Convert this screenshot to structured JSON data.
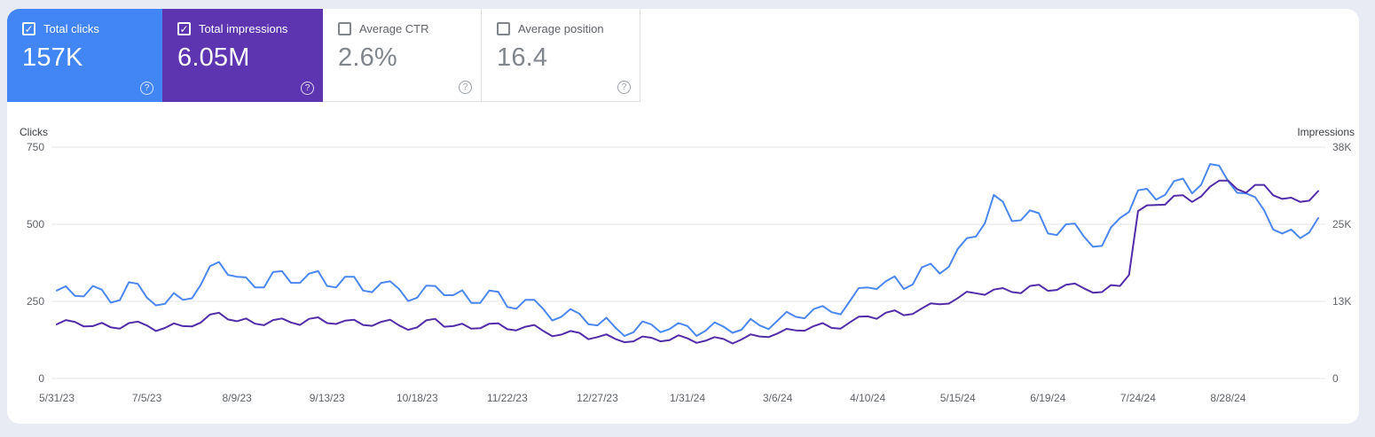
{
  "page": {
    "background": "#e9ebf4",
    "panel_background": "#ffffff"
  },
  "cards": [
    {
      "label": "Total clicks",
      "value": "157K",
      "checked": true,
      "accent": "#4285f4",
      "help_icon": "?"
    },
    {
      "label": "Total impressions",
      "value": "6.05M",
      "checked": true,
      "accent": "#5e35b1",
      "help_icon": "?"
    },
    {
      "label": "Average CTR",
      "value": "2.6%",
      "checked": false,
      "accent": "#ffffff",
      "help_icon": "?"
    },
    {
      "label": "Average position",
      "value": "16.4",
      "checked": false,
      "accent": "#ffffff",
      "help_icon": "?"
    }
  ],
  "chart_data": {
    "type": "line",
    "grid": true,
    "left_axis": {
      "title": "Clicks",
      "ticks": [
        "750",
        "500",
        "250",
        "0"
      ],
      "range": [
        0,
        750
      ]
    },
    "right_axis": {
      "title": "Impressions",
      "ticks": [
        "38K",
        "25K",
        "13K",
        "0"
      ],
      "range": [
        0,
        38000
      ]
    },
    "x_tick_labels": [
      "5/31/23",
      "7/5/23",
      "8/9/23",
      "9/13/23",
      "10/18/23",
      "11/22/23",
      "12/27/23",
      "1/31/24",
      "3/6/24",
      "4/10/24",
      "5/15/24",
      "6/19/24",
      "7/24/24",
      "8/28/24"
    ],
    "x_tick_every_n_points": 10,
    "series": [
      {
        "name": "Total clicks",
        "axis": "left",
        "color": "#4c87f0",
        "values": [
          285,
          299,
          268,
          266,
          300,
          288,
          246,
          254,
          312,
          307,
          262,
          237,
          242,
          277,
          255,
          260,
          305,
          364,
          378,
          336,
          330,
          328,
          295,
          295,
          345,
          348,
          310,
          310,
          340,
          348,
          300,
          295,
          330,
          330,
          285,
          280,
          310,
          315,
          290,
          251,
          262,
          301,
          300,
          270,
          270,
          286,
          245,
          245,
          285,
          281,
          232,
          226,
          255,
          255,
          225,
          188,
          200,
          225,
          210,
          176,
          172,
          197,
          165,
          138,
          150,
          185,
          175,
          150,
          160,
          180,
          170,
          138,
          155,
          182,
          168,
          148,
          158,
          193,
          172,
          160,
          188,
          216,
          200,
          195,
          225,
          235,
          215,
          208,
          250,
          293,
          295,
          290,
          315,
          331,
          290,
          305,
          360,
          372,
          340,
          362,
          420,
          455,
          460,
          503,
          595,
          573,
          510,
          513,
          545,
          536,
          470,
          465,
          500,
          502,
          460,
          427,
          430,
          490,
          520,
          540,
          610,
          615,
          580,
          595,
          640,
          648,
          600,
          628,
          695,
          690,
          640,
          602,
          600,
          588,
          545,
          483,
          470,
          483,
          455,
          473,
          520
        ]
      },
      {
        "name": "Total impressions",
        "axis": "right",
        "color": "#512da8",
        "values": [
          8900,
          9600,
          9300,
          8550,
          8600,
          9150,
          8400,
          8200,
          9100,
          9350,
          8700,
          7800,
          8300,
          9050,
          8600,
          8550,
          9200,
          10500,
          10800,
          9700,
          9400,
          9850,
          9000,
          8750,
          9600,
          9850,
          9200,
          8800,
          9800,
          10050,
          9100,
          8950,
          9500,
          9650,
          8800,
          8650,
          9300,
          9650,
          8700,
          8000,
          8400,
          9550,
          9800,
          8500,
          8600,
          9000,
          8200,
          8250,
          9000,
          9050,
          8100,
          7900,
          8500,
          8800,
          7800,
          6950,
          7200,
          7800,
          7500,
          6450,
          6800,
          7250,
          6500,
          5950,
          6100,
          6900,
          6700,
          6100,
          6300,
          7100,
          6600,
          5850,
          6200,
          6800,
          6500,
          5750,
          6400,
          7250,
          6900,
          6800,
          7400,
          8150,
          7900,
          7850,
          8600,
          9100,
          8300,
          8200,
          9200,
          10150,
          10200,
          9800,
          10800,
          11200,
          10400,
          10600,
          11500,
          12350,
          12200,
          12300,
          13200,
          14250,
          14000,
          13750,
          14600,
          14850,
          14200,
          14000,
          15200,
          15400,
          14400,
          14550,
          15400,
          15600,
          14800,
          14100,
          14200,
          15350,
          15200,
          17000,
          27500,
          28450,
          28500,
          28550,
          30000,
          30100,
          29000,
          29900,
          31500,
          32500,
          32500,
          31100,
          30500,
          31800,
          31800,
          30100,
          29500,
          29700,
          29000,
          29200,
          30800
        ]
      }
    ]
  }
}
